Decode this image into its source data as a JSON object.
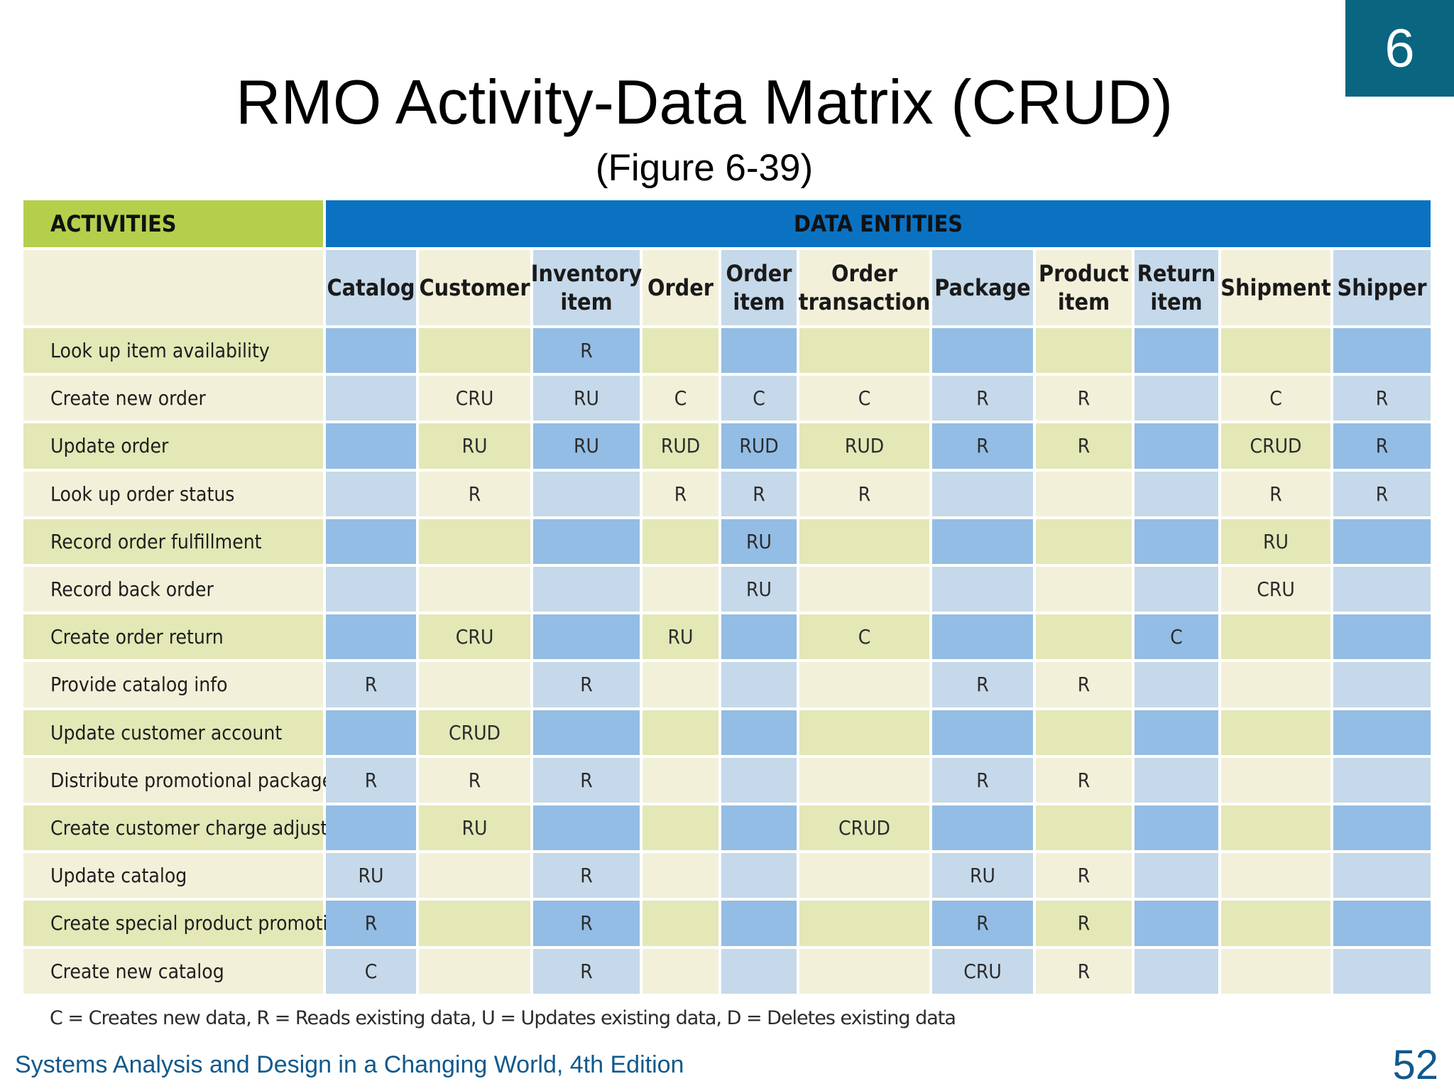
{
  "chapter_badge": "6",
  "title": "RMO Activity-Data Matrix (CRUD)",
  "subtitle": "(Figure 6-39)",
  "matrix": {
    "activities_header": "ACTIVITIES",
    "entities_header": "DATA ENTITIES",
    "columns": [
      "Catalog",
      "Customer",
      "Inventory\nitem",
      "Order",
      "Order\nitem",
      "Order\ntransaction",
      "Package",
      "Product\nitem",
      "Return\nitem",
      "Shipment",
      "Shipper"
    ],
    "rows": [
      {
        "activity": "Look up item availability",
        "cells": [
          "",
          "",
          "R",
          "",
          "",
          "",
          "",
          "",
          "",
          "",
          ""
        ]
      },
      {
        "activity": "Create new order",
        "cells": [
          "",
          "CRU",
          "RU",
          "C",
          "C",
          "C",
          "R",
          "R",
          "",
          "C",
          "R"
        ]
      },
      {
        "activity": "Update order",
        "cells": [
          "",
          "RU",
          "RU",
          "RUD",
          "RUD",
          "RUD",
          "R",
          "R",
          "",
          "CRUD",
          "R"
        ]
      },
      {
        "activity": "Look up order status",
        "cells": [
          "",
          "R",
          "",
          "R",
          "R",
          "R",
          "",
          "",
          "",
          "R",
          "R"
        ]
      },
      {
        "activity": "Record order fulfillment",
        "cells": [
          "",
          "",
          "",
          "",
          "RU",
          "",
          "",
          "",
          "",
          "RU",
          ""
        ]
      },
      {
        "activity": "Record back order",
        "cells": [
          "",
          "",
          "",
          "",
          "RU",
          "",
          "",
          "",
          "",
          "CRU",
          ""
        ]
      },
      {
        "activity": "Create order return",
        "cells": [
          "",
          "CRU",
          "",
          "RU",
          "",
          "C",
          "",
          "",
          "C",
          "",
          ""
        ]
      },
      {
        "activity": "Provide catalog info",
        "cells": [
          "R",
          "",
          "R",
          "",
          "",
          "",
          "R",
          "R",
          "",
          "",
          ""
        ]
      },
      {
        "activity": "Update customer account",
        "cells": [
          "",
          "CRUD",
          "",
          "",
          "",
          "",
          "",
          "",
          "",
          "",
          ""
        ]
      },
      {
        "activity": "Distribute promotional package",
        "cells": [
          "R",
          "R",
          "R",
          "",
          "",
          "",
          "R",
          "R",
          "",
          "",
          ""
        ]
      },
      {
        "activity": "Create customer charge adjustment",
        "cells": [
          "",
          "RU",
          "",
          "",
          "",
          "CRUD",
          "",
          "",
          "",
          "",
          ""
        ]
      },
      {
        "activity": "Update catalog",
        "cells": [
          "RU",
          "",
          "R",
          "",
          "",
          "",
          "RU",
          "R",
          "",
          "",
          ""
        ]
      },
      {
        "activity": "Create special product promotion",
        "cells": [
          "R",
          "",
          "R",
          "",
          "",
          "",
          "R",
          "R",
          "",
          "",
          ""
        ]
      },
      {
        "activity": "Create new catalog",
        "cells": [
          "C",
          "",
          "R",
          "",
          "",
          "",
          "CRU",
          "R",
          "",
          "",
          ""
        ]
      }
    ]
  },
  "legend": "C = Creates new data,  R = Reads existing data,  U = Updates existing data,  D = Deletes existing data",
  "footer": "Systems Analysis and Design in a Changing World, 4th Edition",
  "page_number": "52",
  "colors": {
    "badge": "#0a6580",
    "activities_header": "#b4cf4c",
    "entities_header": "#0b72c2",
    "green_light": "#f3f0da",
    "green_dark": "#e3e8b6",
    "blue_light": "#c5d9ea",
    "blue_dark": "#93bde4",
    "blue_header": "#c5d9ea",
    "green_header": "#f3f0da",
    "footer_text": "#10598c"
  }
}
